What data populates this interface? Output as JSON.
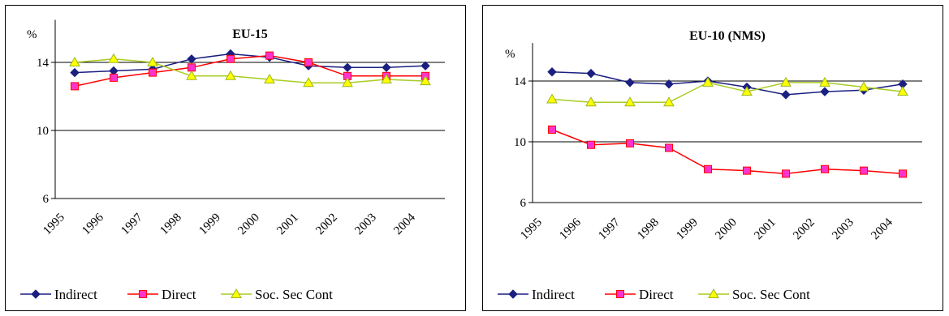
{
  "chart_data": [
    {
      "type": "line",
      "title": "EU-15",
      "unit_label": "%",
      "categories": [
        "1995",
        "1996",
        "1997",
        "1998",
        "1999",
        "2000",
        "2001",
        "2002",
        "2003",
        "2004"
      ],
      "ylim": [
        6,
        16
      ],
      "yticks": [
        "6",
        "10",
        "14"
      ],
      "grid": "horizontal",
      "legend_position": "bottom",
      "series": [
        {
          "name": "Indirect",
          "color": "#1a1f80",
          "marker": "diamond",
          "values": [
            13.4,
            13.5,
            13.6,
            14.2,
            14.5,
            14.3,
            13.8,
            13.7,
            13.7,
            13.8
          ]
        },
        {
          "name": "Direct",
          "color": "#ff0000",
          "marker": "square",
          "values": [
            12.6,
            13.1,
            13.4,
            13.7,
            14.2,
            14.4,
            14.0,
            13.2,
            13.2,
            13.2
          ]
        },
        {
          "name": "Soc. Sec Cont",
          "color": "#a8cc24",
          "marker": "triangle",
          "values": [
            14.0,
            14.2,
            14.0,
            13.2,
            13.2,
            13.0,
            12.8,
            12.8,
            13.0,
            12.9
          ]
        }
      ]
    },
    {
      "type": "line",
      "title": "EU-10 (NMS)",
      "unit_label": "%",
      "categories": [
        "1995",
        "1996",
        "1997",
        "1998",
        "1999",
        "2000",
        "2001",
        "2002",
        "2003",
        "2004"
      ],
      "ylim": [
        6,
        16
      ],
      "yticks": [
        "6",
        "10",
        "14"
      ],
      "grid": "horizontal",
      "legend_position": "bottom",
      "series": [
        {
          "name": "Indirect",
          "color": "#1a1f80",
          "marker": "diamond",
          "values": [
            14.6,
            14.5,
            13.9,
            13.8,
            14.0,
            13.6,
            13.1,
            13.3,
            13.4,
            13.8
          ]
        },
        {
          "name": "Direct",
          "color": "#ff0000",
          "marker": "square",
          "values": [
            10.8,
            9.8,
            9.9,
            9.6,
            8.2,
            8.1,
            7.9,
            8.2,
            8.1,
            7.9
          ]
        },
        {
          "name": "Soc. Sec Cont",
          "color": "#a8cc24",
          "marker": "triangle",
          "values": [
            12.8,
            12.6,
            12.6,
            12.6,
            13.9,
            13.3,
            13.9,
            13.9,
            13.6,
            13.3
          ]
        }
      ]
    }
  ]
}
